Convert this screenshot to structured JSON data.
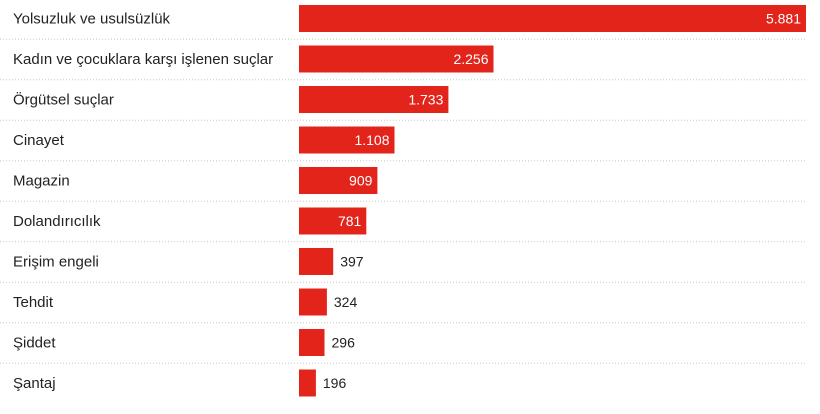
{
  "chart_data": {
    "type": "bar",
    "orientation": "horizontal",
    "categories": [
      "Yolsuzluk ve usulsüzlük",
      "Kadın ve çocuklara karşı işlenen suçlar",
      "Örgütsel suçlar",
      "Cinayet",
      "Magazin",
      "Dolandırıcılık",
      "Erişim engeli",
      "Tehdit",
      "Şiddet",
      "Şantaj"
    ],
    "values": [
      5881,
      2256,
      1733,
      1108,
      909,
      781,
      397,
      324,
      296,
      196
    ],
    "value_labels": [
      "5.881",
      "2.256",
      "1.733",
      "1.108",
      "909",
      "781",
      "397",
      "324",
      "296",
      "196"
    ],
    "title": "",
    "xlabel": "",
    "ylabel": "",
    "xlim": [
      0,
      5881
    ],
    "grid": false,
    "legend": "none",
    "bar_color": "#e3241b"
  }
}
